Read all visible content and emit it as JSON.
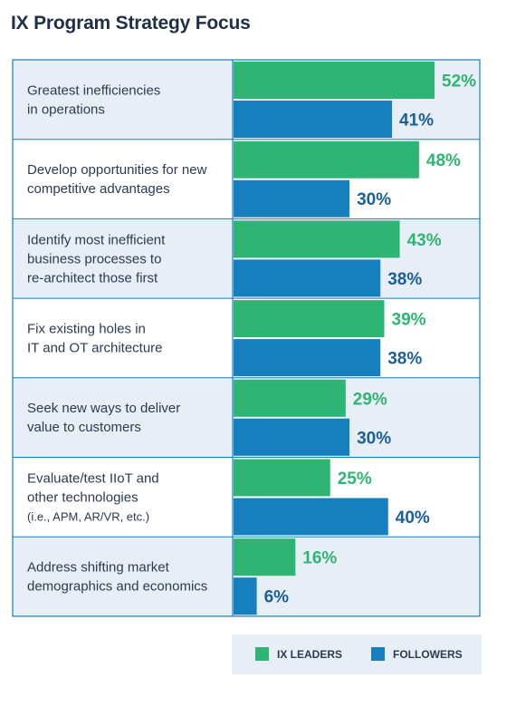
{
  "title": "IX Program Strategy Focus",
  "colors": {
    "leaders": "#2fb573",
    "followers": "#1580bd",
    "row_shade": "#e8eef5",
    "border": "#1580bd",
    "label_text": "#2b3a52",
    "leaders_text": "#2fb573",
    "followers_text": "#1a5f98"
  },
  "chart_data": {
    "type": "bar",
    "orientation": "horizontal",
    "title": "IX Program Strategy Focus",
    "categories": [
      [
        "Greatest inefficiencies",
        "in operations"
      ],
      [
        "Develop opportunities for new",
        "competitive advantages"
      ],
      [
        "Identify most inefficient",
        "business processes to",
        "re-architect those first"
      ],
      [
        "Fix existing holes in",
        "IT and OT architecture"
      ],
      [
        "Seek new ways to deliver",
        "value to customers"
      ],
      [
        "Evaluate/test IIoT and",
        "other technologies",
        "(i.e., APM, AR/VR, etc.)"
      ],
      [
        "Address shifting market",
        "demographics and economics"
      ]
    ],
    "series": [
      {
        "name": "IX LEADERS",
        "values": [
          52,
          48,
          43,
          39,
          29,
          25,
          16
        ],
        "labels": [
          "52%",
          "48%",
          "43%",
          "39%",
          "29%",
          "25%",
          "16%"
        ]
      },
      {
        "name": "FOLLOWERS",
        "values": [
          41,
          30,
          38,
          38,
          30,
          40,
          6
        ],
        "labels": [
          "41%",
          "30%",
          "38%",
          "38%",
          "30%",
          "40%",
          "6%"
        ]
      }
    ],
    "xlim": [
      0,
      52
    ],
    "legend": "bottom",
    "grid": false
  },
  "legend": {
    "leaders_label": "IX LEADERS",
    "followers_label": "FOLLOWERS"
  }
}
